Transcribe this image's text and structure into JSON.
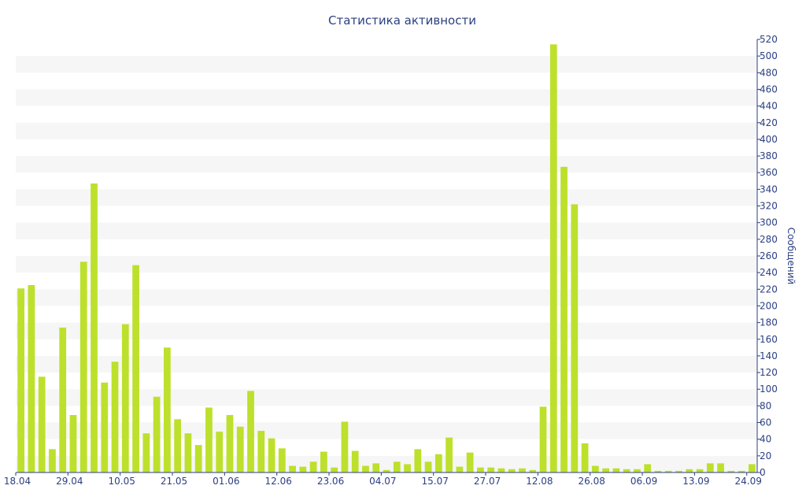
{
  "chart_data": {
    "type": "bar",
    "title": "Статистика активности",
    "ylabel": "Сообщений",
    "xlabel": "",
    "ylim": [
      0,
      520
    ],
    "ytick_step": 20,
    "bar_color": "#bde02c",
    "band_color": "#f6f6f6",
    "axis_color": "#2b3f82",
    "grid": "alternating horizontal bands",
    "y_axis_side": "right",
    "x_tick_labels": [
      "18.04",
      "29.04",
      "10.05",
      "21.05",
      "01.06",
      "12.06",
      "23.06",
      "04.07",
      "15.07",
      "27.07",
      "12.08",
      "26.08",
      "06.09",
      "13.09",
      "24.09"
    ],
    "x_tick_positions": [
      0,
      5,
      10,
      15,
      20,
      25,
      30,
      35,
      40,
      45,
      50,
      55,
      60,
      65,
      70
    ],
    "values": [
      221,
      225,
      115,
      28,
      174,
      69,
      253,
      347,
      108,
      133,
      178,
      249,
      47,
      91,
      150,
      64,
      47,
      33,
      78,
      49,
      69,
      55,
      98,
      50,
      41,
      29,
      8,
      7,
      13,
      25,
      6,
      61,
      26,
      8,
      11,
      3,
      13,
      10,
      28,
      13,
      22,
      42,
      7,
      24,
      6,
      6,
      5,
      4,
      5,
      3,
      79,
      514,
      367,
      322,
      35,
      8,
      5,
      5,
      4,
      4,
      10,
      2,
      2,
      2,
      4,
      4,
      11,
      11,
      2,
      2,
      10
    ]
  }
}
